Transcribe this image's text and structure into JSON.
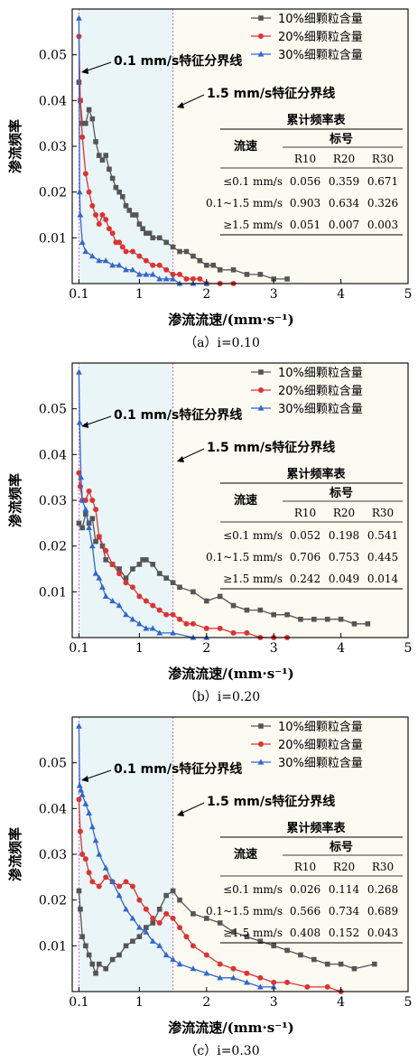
{
  "legend_series": [
    "10%细颗粒含量",
    "20%细颗粒含量",
    "30%细颗粒含量"
  ],
  "series_colors": [
    "#555555",
    "#dd3333",
    "#3366cc"
  ],
  "marker_shapes": [
    "square",
    "circle",
    "triangle"
  ],
  "shade_colors": {
    "zone1": "#eaf5f7",
    "zone2": "#fbfbf1"
  },
  "boundary_labels": {
    "low": "0.1 mm/s特征分界线",
    "high": "1.5 mm/s特征分界线"
  },
  "panels": [
    {
      "caption": "（a）i=0.10",
      "table": {
        "title": "累计频率表",
        "header_speed": "流速",
        "header_group": "标号",
        "cols": [
          "R10",
          "R20",
          "R30"
        ],
        "rows": [
          {
            "label": "≤0.1 mm/s",
            "values": [
              "0.056",
              "0.359",
              "0.671"
            ]
          },
          {
            "label": "0.1~1.5 mm/s",
            "values": [
              "0.903",
              "0.634",
              "0.326"
            ]
          },
          {
            "label": "≥1.5 mm/s",
            "values": [
              "0.051",
              "0.007",
              "0.003"
            ]
          }
        ]
      }
    },
    {
      "caption": "（b）i=0.20",
      "table": {
        "title": "累计频率表",
        "header_speed": "流速",
        "header_group": "标号",
        "cols": [
          "R10",
          "R20",
          "R30"
        ],
        "rows": [
          {
            "label": "≤0.1 mm/s",
            "values": [
              "0.052",
              "0.198",
              "0.541"
            ]
          },
          {
            "label": "0.1~1.5 mm/s",
            "values": [
              "0.706",
              "0.753",
              "0.445"
            ]
          },
          {
            "label": "≥1.5 mm/s",
            "values": [
              "0.242",
              "0.049",
              "0.014"
            ]
          }
        ]
      }
    },
    {
      "caption": "（c）i=0.30",
      "table": {
        "title": "累计频率表",
        "header_speed": "流速",
        "header_group": "标号",
        "cols": [
          "R10",
          "R20",
          "R30"
        ],
        "rows": [
          {
            "label": "≤0.1 mm/s",
            "values": [
              "0.026",
              "0.114",
              "0.268"
            ]
          },
          {
            "label": "0.1~1.5 mm/s",
            "values": [
              "0.566",
              "0.734",
              "0.689"
            ]
          },
          {
            "label": "≥1.5 mm/s",
            "values": [
              "0.408",
              "0.152",
              "0.043"
            ]
          }
        ]
      }
    }
  ],
  "chart_data": [
    {
      "type": "line",
      "xlabel": "渗流流速/(mm·s⁻¹)",
      "ylabel": "渗流频率",
      "xlim": [
        0,
        5
      ],
      "ylim": [
        0,
        0.06
      ],
      "xticks": [
        "0.1",
        "1",
        "2",
        "3",
        "4",
        "5"
      ],
      "yticks": [
        "0.01",
        "0.02",
        "0.03",
        "0.04",
        "0.05"
      ],
      "series": [
        {
          "name": "10%细颗粒含量",
          "x": [
            0.1,
            0.12,
            0.15,
            0.2,
            0.25,
            0.3,
            0.35,
            0.4,
            0.45,
            0.5,
            0.55,
            0.6,
            0.65,
            0.7,
            0.75,
            0.8,
            0.85,
            0.9,
            0.95,
            1.0,
            1.05,
            1.1,
            1.15,
            1.2,
            1.3,
            1.4,
            1.5,
            1.6,
            1.7,
            1.8,
            1.9,
            2.0,
            2.1,
            2.2,
            2.4,
            2.6,
            2.8,
            3.0,
            3.2
          ],
          "y": [
            0.044,
            0.04,
            0.035,
            0.035,
            0.038,
            0.036,
            0.031,
            0.028,
            0.027,
            0.028,
            0.025,
            0.023,
            0.021,
            0.02,
            0.019,
            0.017,
            0.016,
            0.015,
            0.015,
            0.013,
            0.012,
            0.011,
            0.011,
            0.01,
            0.01,
            0.009,
            0.008,
            0.007,
            0.007,
            0.006,
            0.005,
            0.004,
            0.004,
            0.003,
            0.003,
            0.002,
            0.002,
            0.001,
            0.001
          ]
        },
        {
          "name": "20%细颗粒含量",
          "x": [
            0.1,
            0.12,
            0.15,
            0.2,
            0.25,
            0.3,
            0.35,
            0.4,
            0.45,
            0.5,
            0.55,
            0.6,
            0.65,
            0.7,
            0.75,
            0.8,
            0.9,
            1.0,
            1.1,
            1.2,
            1.3,
            1.4,
            1.5,
            1.6,
            1.7,
            1.8,
            1.9,
            2.0,
            2.2,
            2.4
          ],
          "y": [
            0.054,
            0.04,
            0.032,
            0.024,
            0.02,
            0.017,
            0.015,
            0.013,
            0.015,
            0.014,
            0.012,
            0.011,
            0.009,
            0.009,
            0.008,
            0.007,
            0.007,
            0.006,
            0.005,
            0.004,
            0.004,
            0.003,
            0.002,
            0.002,
            0.001,
            0.001,
            0.001,
            0.0,
            0.0,
            0.0
          ]
        },
        {
          "name": "30%细颗粒含量",
          "x": [
            0.1,
            0.11,
            0.12,
            0.15,
            0.2,
            0.3,
            0.4,
            0.5,
            0.6,
            0.7,
            0.8,
            0.9,
            1.0,
            1.1,
            1.2,
            1.3,
            1.4,
            1.5,
            1.6,
            1.8,
            2.0
          ],
          "y": [
            0.058,
            0.02,
            0.015,
            0.009,
            0.007,
            0.006,
            0.005,
            0.005,
            0.004,
            0.004,
            0.003,
            0.003,
            0.002,
            0.002,
            0.002,
            0.001,
            0.001,
            0.001,
            0.0,
            0.0,
            0.0
          ]
        }
      ]
    },
    {
      "type": "line",
      "xlabel": "渗流流速/(mm·s⁻¹)",
      "ylabel": "渗流频率",
      "xlim": [
        0,
        5
      ],
      "ylim": [
        0,
        0.06
      ],
      "xticks": [
        "0.1",
        "1",
        "2",
        "3",
        "4",
        "5"
      ],
      "yticks": [
        "0.01",
        "0.02",
        "0.03",
        "0.04",
        "0.05"
      ],
      "series": [
        {
          "name": "10%细颗粒含量",
          "x": [
            0.1,
            0.15,
            0.2,
            0.25,
            0.3,
            0.35,
            0.4,
            0.45,
            0.5,
            0.6,
            0.7,
            0.8,
            0.9,
            1.0,
            1.05,
            1.1,
            1.2,
            1.3,
            1.4,
            1.5,
            1.6,
            1.8,
            2.0,
            2.2,
            2.4,
            2.6,
            2.8,
            3.0,
            3.2,
            3.4,
            3.6,
            3.8,
            4.0,
            4.2,
            4.4
          ],
          "y": [
            0.025,
            0.024,
            0.027,
            0.025,
            0.026,
            0.021,
            0.022,
            0.02,
            0.017,
            0.016,
            0.015,
            0.013,
            0.015,
            0.016,
            0.017,
            0.017,
            0.016,
            0.014,
            0.013,
            0.012,
            0.011,
            0.01,
            0.008,
            0.009,
            0.007,
            0.006,
            0.006,
            0.005,
            0.005,
            0.004,
            0.004,
            0.004,
            0.004,
            0.003,
            0.003
          ]
        },
        {
          "name": "20%细颗粒含量",
          "x": [
            0.1,
            0.12,
            0.15,
            0.2,
            0.25,
            0.3,
            0.35,
            0.4,
            0.5,
            0.6,
            0.7,
            0.8,
            0.9,
            1.0,
            1.1,
            1.2,
            1.3,
            1.4,
            1.5,
            1.6,
            1.7,
            1.8,
            2.0,
            2.2,
            2.4,
            2.6,
            2.8,
            3.0,
            3.2
          ],
          "y": [
            0.036,
            0.033,
            0.03,
            0.03,
            0.032,
            0.03,
            0.028,
            0.022,
            0.019,
            0.016,
            0.014,
            0.012,
            0.011,
            0.009,
            0.008,
            0.007,
            0.006,
            0.005,
            0.005,
            0.004,
            0.003,
            0.003,
            0.002,
            0.002,
            0.001,
            0.001,
            0.0,
            0.0,
            0.0
          ]
        },
        {
          "name": "30%细颗粒含量",
          "x": [
            0.1,
            0.11,
            0.13,
            0.15,
            0.2,
            0.25,
            0.3,
            0.35,
            0.4,
            0.45,
            0.5,
            0.6,
            0.7,
            0.8,
            0.9,
            1.0,
            1.1,
            1.2,
            1.3,
            1.5,
            1.8,
            2.0
          ],
          "y": [
            0.058,
            0.047,
            0.035,
            0.03,
            0.028,
            0.024,
            0.02,
            0.014,
            0.013,
            0.011,
            0.009,
            0.008,
            0.007,
            0.005,
            0.004,
            0.003,
            0.002,
            0.002,
            0.001,
            0.001,
            0.0,
            0.0
          ]
        }
      ]
    },
    {
      "type": "line",
      "xlabel": "渗流流速/(mm·s⁻¹)",
      "ylabel": "渗流频率",
      "xlim": [
        0,
        5
      ],
      "ylim": [
        0,
        0.06
      ],
      "xticks": [
        "0.1",
        "1",
        "2",
        "3",
        "4",
        "5"
      ],
      "yticks": [
        "0.01",
        "0.02",
        "0.03",
        "0.04",
        "0.05"
      ],
      "series": [
        {
          "name": "10%细颗粒含量",
          "x": [
            0.1,
            0.12,
            0.15,
            0.2,
            0.25,
            0.3,
            0.35,
            0.4,
            0.5,
            0.6,
            0.7,
            0.8,
            0.9,
            1.0,
            1.1,
            1.2,
            1.3,
            1.4,
            1.5,
            1.6,
            1.8,
            2.0,
            2.2,
            2.4,
            2.6,
            2.8,
            3.0,
            3.2,
            3.4,
            3.6,
            3.8,
            4.0,
            4.2,
            4.5
          ],
          "y": [
            0.022,
            0.018,
            0.012,
            0.01,
            0.008,
            0.006,
            0.004,
            0.006,
            0.005,
            0.007,
            0.008,
            0.01,
            0.011,
            0.012,
            0.014,
            0.015,
            0.018,
            0.021,
            0.022,
            0.02,
            0.017,
            0.016,
            0.015,
            0.013,
            0.012,
            0.011,
            0.01,
            0.009,
            0.008,
            0.007,
            0.006,
            0.006,
            0.005,
            0.006
          ]
        },
        {
          "name": "20%细颗粒含量",
          "x": [
            0.1,
            0.12,
            0.15,
            0.2,
            0.25,
            0.3,
            0.4,
            0.5,
            0.6,
            0.7,
            0.8,
            0.9,
            1.0,
            1.1,
            1.2,
            1.3,
            1.4,
            1.5,
            1.6,
            1.7,
            1.8,
            2.0,
            2.2,
            2.4,
            2.6,
            2.8,
            3.0,
            3.2,
            3.5,
            3.8,
            4.0
          ],
          "y": [
            0.042,
            0.035,
            0.03,
            0.029,
            0.026,
            0.024,
            0.023,
            0.025,
            0.024,
            0.023,
            0.024,
            0.023,
            0.02,
            0.018,
            0.016,
            0.015,
            0.017,
            0.016,
            0.014,
            0.012,
            0.01,
            0.008,
            0.006,
            0.005,
            0.004,
            0.003,
            0.002,
            0.002,
            0.001,
            0.001,
            0.0
          ]
        },
        {
          "name": "30%细颗粒含量",
          "x": [
            0.1,
            0.11,
            0.13,
            0.15,
            0.2,
            0.25,
            0.3,
            0.35,
            0.4,
            0.5,
            0.6,
            0.7,
            0.8,
            0.9,
            1.0,
            1.1,
            1.2,
            1.3,
            1.4,
            1.5,
            1.6,
            1.8,
            2.0,
            2.2,
            2.4,
            2.6,
            2.8,
            3.0
          ],
          "y": [
            0.058,
            0.045,
            0.044,
            0.043,
            0.041,
            0.039,
            0.036,
            0.033,
            0.03,
            0.027,
            0.024,
            0.021,
            0.018,
            0.016,
            0.014,
            0.013,
            0.011,
            0.01,
            0.008,
            0.007,
            0.006,
            0.005,
            0.004,
            0.003,
            0.003,
            0.002,
            0.001,
            0.001
          ]
        }
      ]
    }
  ]
}
